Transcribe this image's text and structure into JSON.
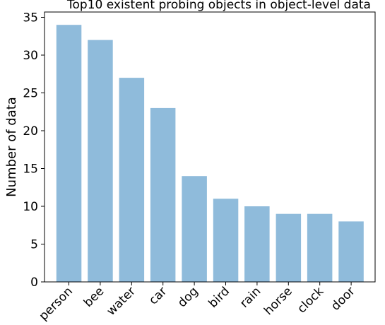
{
  "chart_data": {
    "type": "bar",
    "title": "Top10 existent probing objects in object-level data",
    "xlabel": "",
    "ylabel": "Number of data",
    "categories": [
      "person",
      "bee",
      "water",
      "car",
      "dog",
      "bird",
      "rain",
      "horse",
      "clock",
      "door"
    ],
    "values": [
      34,
      32,
      27,
      23,
      14,
      11,
      10,
      9,
      9,
      8
    ],
    "ylim": [
      0,
      35.7
    ],
    "yticks": [
      "0",
      "5",
      "10",
      "15",
      "20",
      "25",
      "30",
      "35"
    ],
    "bar_color": "#8fbbdb",
    "grid": false,
    "legend": "none"
  }
}
